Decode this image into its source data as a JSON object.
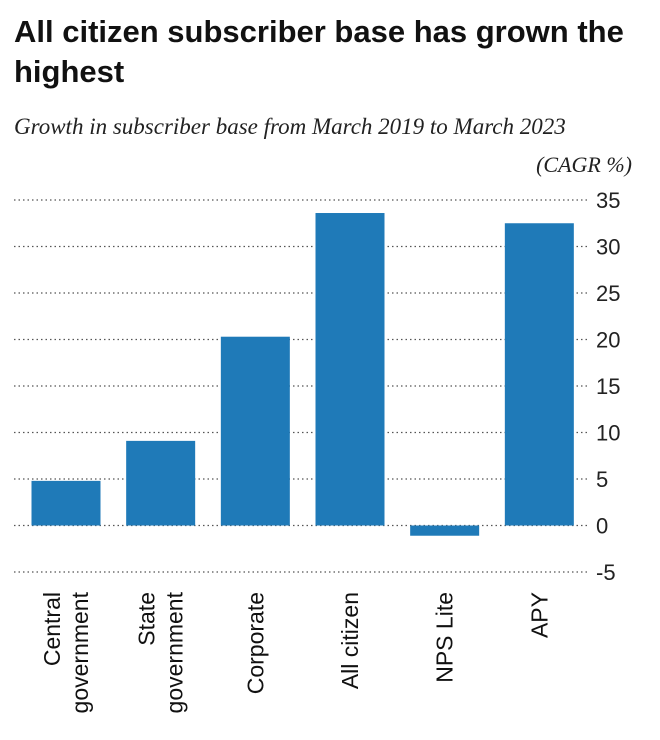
{
  "chart_data": {
    "type": "bar",
    "title": "All citizen subscriber base has grown the highest",
    "subtitle": "Growth in subscriber base from March 2019 to March 2023",
    "ylabel": "(CAGR %)",
    "categories": [
      [
        "Central",
        "government"
      ],
      [
        "State",
        "government"
      ],
      [
        "Corporate"
      ],
      [
        "All citizen"
      ],
      [
        "NPS Lite"
      ],
      [
        "APY"
      ]
    ],
    "values": [
      4.8,
      9.1,
      20.3,
      33.6,
      -1.1,
      32.5
    ],
    "ylim": [
      -5,
      35
    ],
    "yticks": [
      -5,
      0,
      5,
      10,
      15,
      20,
      25,
      30,
      35
    ],
    "grid": true,
    "bar_color": "#1f7ab8"
  }
}
